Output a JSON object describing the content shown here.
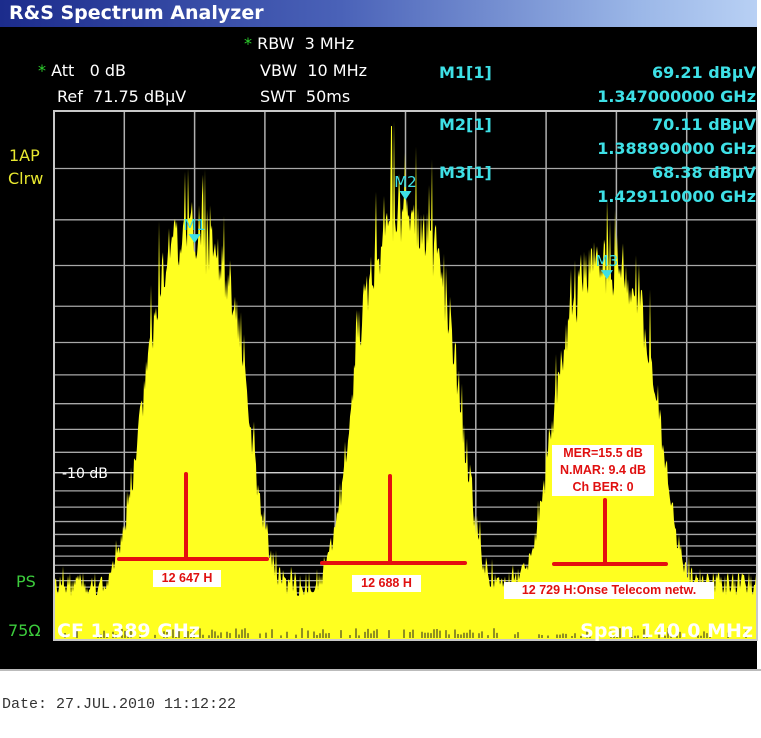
{
  "window": {
    "title": "R&S Spectrum Analyzer"
  },
  "settings": {
    "rbw_star": "*",
    "rbw": "RBW  3 MHz",
    "att_star": "*",
    "att": "Att   0 dB",
    "vbw": "VBW  10 MHz",
    "ref": "Ref  71.75 dBµV",
    "swt": "SWT  50ms"
  },
  "markers": [
    {
      "label": "M1[1]",
      "tag": "M1",
      "level": "69.21 dBµV",
      "freq": "1.347000000 GHz",
      "level_dbuv": 69.21,
      "freq_ghz": 1.347
    },
    {
      "label": "M2[1]",
      "tag": "M2",
      "level": "70.11 dBµV",
      "freq": "1.388990000 GHz",
      "level_dbuv": 70.11,
      "freq_ghz": 1.38899
    },
    {
      "label": "M3[1]",
      "tag": "M3",
      "level": "68.38 dBµV",
      "freq": "1.429110000 GHz",
      "level_dbuv": 68.38,
      "freq_ghz": 1.42911
    }
  ],
  "side": {
    "trace1": "1AP",
    "trace2": "Clrw",
    "ps": "PS",
    "imp": "75Ω",
    "grid_label": "-10 dB"
  },
  "footer": {
    "cf": "CF 1.389 GHz",
    "span": "Span 140.0 MHz"
  },
  "date": "Date: 27.JUL.2010  11:12:22",
  "annotations": {
    "ch1": "12 647 H",
    "ch2": "12 688 H",
    "ch3": "12 729 H:Onse Telecom netw.",
    "mer": "MER=15.5 dB\nN.MAR: 9.4 dB\nCh BER: 0"
  },
  "colors": {
    "trace": "#ffff20",
    "marker": "#3ee0e6",
    "annotation": "#e01010",
    "grid": "#b8b8b8"
  },
  "chart_data": {
    "type": "area",
    "title": "",
    "x_range_ghz": [
      1.319,
      1.459
    ],
    "center_ghz": 1.389,
    "span_mhz": 140.0,
    "ref_level_dbuv": 71.75,
    "y_scale": "linear voltage, 1 dB grid",
    "grid": true,
    "noise_floor_dbuv": 52,
    "channels": [
      {
        "center_ghz": 1.347,
        "approx_top_dbuv": 68.5
      },
      {
        "center_ghz": 1.389,
        "approx_top_dbuv": 69.0
      },
      {
        "center_ghz": 1.429,
        "approx_top_dbuv": 67.8
      }
    ]
  }
}
